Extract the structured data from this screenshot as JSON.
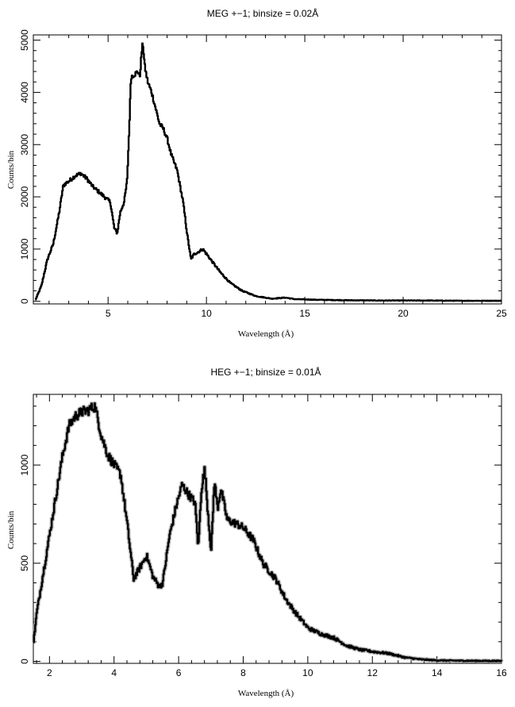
{
  "chart_data": [
    {
      "type": "line",
      "title": "MEG +−1; binsize = 0.02Å",
      "xlabel": "Wavelength (Å)",
      "ylabel": "Counts/bin",
      "xlim": [
        1.2,
        25
      ],
      "ylim": [
        -50,
        5100
      ],
      "xticks": [
        5,
        10,
        15,
        20,
        25
      ],
      "yticks": [
        0,
        1000,
        2000,
        3000,
        4000,
        5000
      ],
      "grid": false,
      "series": [
        {
          "x": [
            1.3,
            1.6,
            1.9,
            2.2,
            2.5,
            2.7,
            2.8,
            3.0,
            3.3,
            3.6,
            3.9,
            4.2,
            4.5,
            4.8,
            5.1,
            5.3,
            5.45,
            5.6,
            5.8,
            5.95,
            6.05,
            6.15,
            6.35,
            6.5,
            6.6,
            6.7,
            6.75,
            6.85,
            7.0,
            7.2,
            7.4,
            7.6,
            7.8,
            8.0,
            8.2,
            8.5,
            8.8,
            9.0,
            9.2,
            9.35,
            9.6,
            9.8,
            10.0,
            10.3,
            10.7,
            11.2,
            11.8,
            12.5,
            13.3,
            14.0,
            14.5,
            15.5,
            17,
            19,
            21,
            23,
            25
          ],
          "y": [
            30,
            300,
            800,
            1100,
            1700,
            2200,
            2250,
            2300,
            2400,
            2450,
            2350,
            2200,
            2100,
            2000,
            1900,
            1400,
            1300,
            1700,
            1900,
            2300,
            3200,
            4300,
            4350,
            4400,
            4300,
            4800,
            4950,
            4500,
            4200,
            4000,
            3700,
            3400,
            3300,
            3100,
            2800,
            2500,
            1900,
            1300,
            800,
            900,
            950,
            1000,
            900,
            750,
            550,
            350,
            200,
            100,
            50,
            70,
            40,
            30,
            20,
            15,
            15,
            10,
            10
          ]
        }
      ]
    },
    {
      "type": "line",
      "title": "HEG +−1; binsize = 0.01Å",
      "xlabel": "Wavelength (Å)",
      "ylabel": "Counts/bin",
      "xlim": [
        1.5,
        16
      ],
      "ylim": [
        -10,
        1360
      ],
      "xticks": [
        2,
        4,
        6,
        8,
        10,
        12,
        14,
        16
      ],
      "yticks": [
        0,
        500,
        1000
      ],
      "grid": false,
      "series": [
        {
          "x": [
            1.5,
            1.6,
            1.8,
            2.0,
            2.2,
            2.4,
            2.6,
            2.8,
            3.0,
            3.2,
            3.4,
            3.6,
            3.8,
            4.0,
            4.2,
            4.4,
            4.6,
            4.8,
            5.0,
            5.2,
            5.4,
            5.5,
            5.7,
            5.9,
            6.1,
            6.3,
            6.5,
            6.6,
            6.7,
            6.8,
            6.9,
            7.0,
            7.1,
            7.2,
            7.3,
            7.5,
            7.8,
            8.0,
            8.3,
            8.6,
            9.0,
            9.3,
            9.6,
            10.0,
            10.4,
            10.8,
            11.2,
            11.6,
            12.0,
            12.5,
            13.0,
            13.5,
            14.0,
            15.0,
            16.0
          ],
          "y": [
            100,
            250,
            450,
            650,
            850,
            1050,
            1200,
            1250,
            1270,
            1280,
            1300,
            1150,
            1050,
            1000,
            950,
            700,
            420,
            480,
            540,
            430,
            380,
            400,
            630,
            780,
            900,
            850,
            810,
            580,
            880,
            980,
            760,
            560,
            920,
            780,
            880,
            720,
            700,
            680,
            620,
            500,
            420,
            320,
            250,
            170,
            140,
            120,
            80,
            60,
            50,
            40,
            20,
            10,
            5,
            3,
            2
          ]
        }
      ]
    }
  ]
}
